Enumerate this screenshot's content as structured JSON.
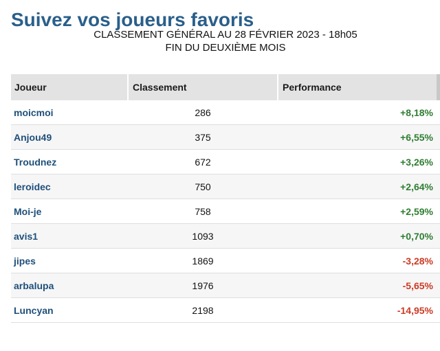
{
  "header": {
    "title": "Suivez vos joueurs favoris",
    "subtitle_line1": "CLASSEMENT GÉNÉRAL AU 28 FÉVRIER 2023 - 18h05",
    "subtitle_line2": "FIN DU DEUXIÈME MOIS"
  },
  "table": {
    "columns": {
      "player": "Joueur",
      "rank": "Classement",
      "performance": "Performance"
    },
    "rows": [
      {
        "player": "moicmoi",
        "rank": "286",
        "performance": "+8,18%",
        "trend": "positive"
      },
      {
        "player": "Anjou49",
        "rank": "375",
        "performance": "+6,55%",
        "trend": "positive"
      },
      {
        "player": "Troudnez",
        "rank": "672",
        "performance": "+3,26%",
        "trend": "positive"
      },
      {
        "player": "leroidec",
        "rank": "750",
        "performance": "+2,64%",
        "trend": "positive"
      },
      {
        "player": "Moi-je",
        "rank": "758",
        "performance": "+2,59%",
        "trend": "positive"
      },
      {
        "player": "avis1",
        "rank": "1093",
        "performance": "+0,70%",
        "trend": "positive"
      },
      {
        "player": "jipes",
        "rank": "1869",
        "performance": "-3,28%",
        "trend": "negative"
      },
      {
        "player": "arbalupa",
        "rank": "1976",
        "performance": "-5,65%",
        "trend": "negative"
      },
      {
        "player": "Luncyan",
        "rank": "2198",
        "performance": "-14,95%",
        "trend": "negative"
      }
    ]
  },
  "colors": {
    "title": "#2a5f8a",
    "player_link": "#1f4f7a",
    "positive": "#2f7d32",
    "negative": "#cc3b24",
    "header_bg": "#e3e3e3"
  }
}
